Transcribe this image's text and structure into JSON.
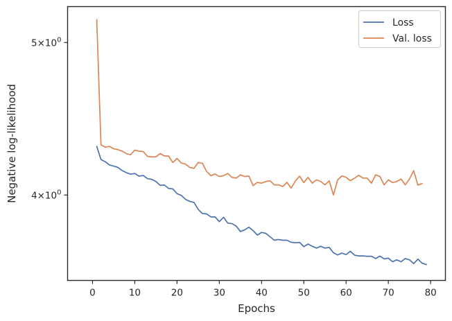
{
  "chart_data": {
    "type": "line",
    "title": "",
    "xlabel": "Epochs",
    "ylabel": "Negative log-likelihood",
    "xlim": [
      -5.9,
      83.5
    ],
    "ylim": [
      3.53,
      5.27
    ],
    "yscale": "log",
    "grid": false,
    "legend_position": "top-right",
    "x_ticks": [
      0,
      10,
      20,
      30,
      40,
      50,
      60,
      70,
      80
    ],
    "y_ticks": [
      {
        "value": 5.0,
        "base": "5×10",
        "exp": "0"
      },
      {
        "value": 4.0,
        "base": "4×10",
        "exp": "0"
      }
    ],
    "series": [
      {
        "name": "Loss",
        "color": "#4c72b0",
        "values": [
          4.295,
          4.213,
          4.2,
          4.18,
          4.173,
          4.165,
          4.146,
          4.133,
          4.124,
          4.128,
          4.112,
          4.116,
          4.097,
          4.093,
          4.08,
          4.057,
          4.059,
          4.039,
          4.036,
          4.008,
          3.998,
          3.975,
          3.963,
          3.957,
          3.917,
          3.893,
          3.891,
          3.874,
          3.874,
          3.847,
          3.872,
          3.839,
          3.836,
          3.822,
          3.792,
          3.801,
          3.816,
          3.797,
          3.772,
          3.787,
          3.782,
          3.763,
          3.744,
          3.748,
          3.744,
          3.744,
          3.733,
          3.73,
          3.732,
          3.709,
          3.723,
          3.711,
          3.701,
          3.711,
          3.701,
          3.705,
          3.676,
          3.664,
          3.674,
          3.666,
          3.684,
          3.663,
          3.659,
          3.659,
          3.657,
          3.657,
          3.645,
          3.658,
          3.643,
          3.647,
          3.628,
          3.638,
          3.628,
          3.645,
          3.638,
          3.618,
          3.642,
          3.62,
          3.613
        ]
      },
      {
        "name": "Val. loss",
        "color": "#dd8452",
        "values": [
          5.17,
          4.305,
          4.29,
          4.295,
          4.28,
          4.275,
          4.265,
          4.25,
          4.243,
          4.272,
          4.265,
          4.263,
          4.233,
          4.23,
          4.23,
          4.25,
          4.235,
          4.235,
          4.195,
          4.22,
          4.192,
          4.185,
          4.165,
          4.159,
          4.195,
          4.19,
          4.14,
          4.115,
          4.125,
          4.11,
          4.115,
          4.128,
          4.105,
          4.1,
          4.12,
          4.11,
          4.113,
          4.055,
          4.075,
          4.07,
          4.08,
          4.084,
          4.06,
          4.06,
          4.05,
          4.075,
          4.04,
          4.083,
          4.112,
          4.073,
          4.105,
          4.07,
          4.09,
          4.08,
          4.06,
          4.084,
          4.0,
          4.09,
          4.113,
          4.105,
          4.085,
          4.1,
          4.117,
          4.1,
          4.1,
          4.07,
          4.12,
          4.11,
          4.06,
          4.09,
          4.073,
          4.08,
          4.095,
          4.06,
          4.095,
          4.145,
          4.058,
          4.068
        ]
      }
    ]
  }
}
